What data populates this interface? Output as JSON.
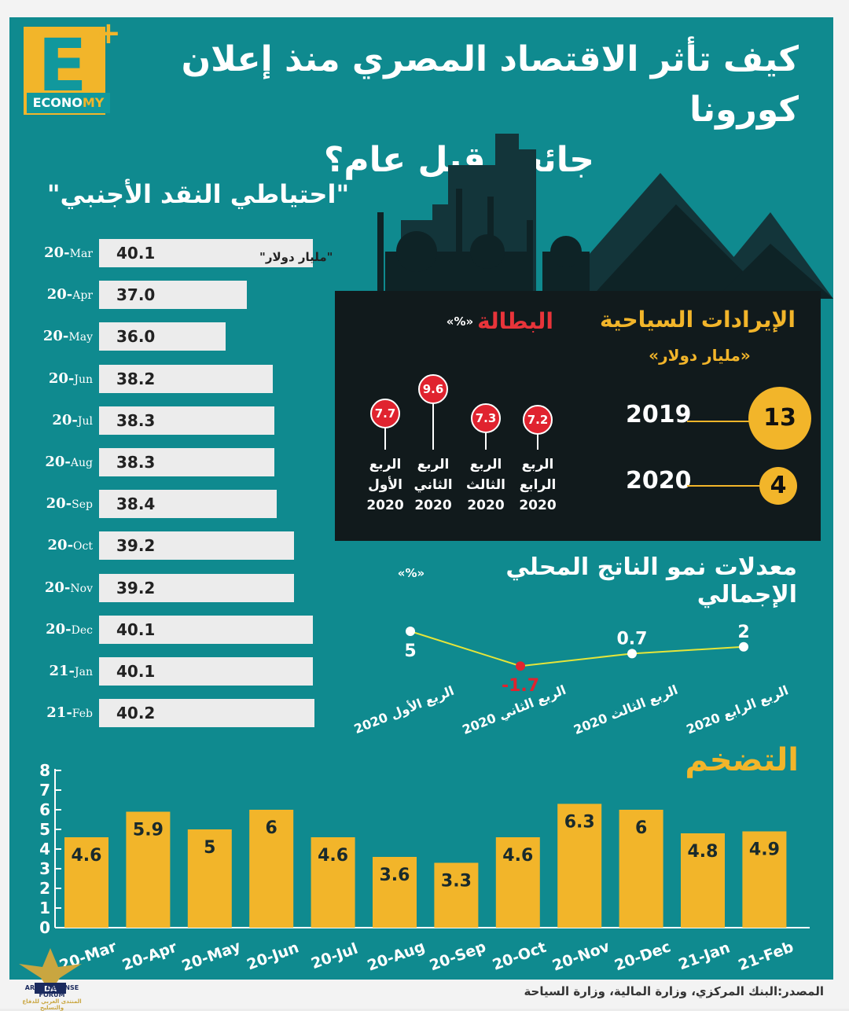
{
  "brand": {
    "letter": "E",
    "plus": "+",
    "word_prefix": "ECONO",
    "word_suffix": "MY"
  },
  "title_line1": "كيف تأثر الاقتصاد المصري منذ إعلان كورونا",
  "title_line2": "جائحة قبل عام؟",
  "source": "المصدر:البنك المركزي، وزارة المالية، وزارة السياحة",
  "watermark": {
    "name": "ARAB DEFENSE FORUM",
    "arabic": "المنتدى العربي للدفاع والتسليح",
    "mark": "DA"
  },
  "colors": {
    "background": "#0f8a8f",
    "accent": "#f2b52a",
    "unemployment": "#e0232f",
    "dark_panel": "#111a1c",
    "bar_light": "#ececec"
  },
  "reserves": {
    "title": "\"احتياطي النقد الأجنبي\"",
    "unit": "\"مليار دولار\"",
    "rows": [
      {
        "year": "20-",
        "month": "Mar",
        "value": "40.1"
      },
      {
        "year": "20-",
        "month": "Apr",
        "value": "37.0"
      },
      {
        "year": "20-",
        "month": "May",
        "value": "36.0"
      },
      {
        "year": "20-",
        "month": "Jun",
        "value": "38.2"
      },
      {
        "year": "20-",
        "month": "Jul",
        "value": "38.3"
      },
      {
        "year": "20-",
        "month": "Aug",
        "value": "38.3"
      },
      {
        "year": "20-",
        "month": "Sep",
        "value": "38.4"
      },
      {
        "year": "20-",
        "month": "Oct",
        "value": "39.2"
      },
      {
        "year": "20-",
        "month": "Nov",
        "value": "39.2"
      },
      {
        "year": "20-",
        "month": "Dec",
        "value": "40.1"
      },
      {
        "year": "21-",
        "month": "Jan",
        "value": "40.1"
      },
      {
        "year": "21-",
        "month": "Feb",
        "value": "40.2"
      }
    ]
  },
  "tourism": {
    "title": "الإيرادات السياحية",
    "unit": "«مليار دولار»",
    "items": [
      {
        "year": "2019",
        "value": "13"
      },
      {
        "year": "2020",
        "value": "4"
      }
    ]
  },
  "unemployment": {
    "title": "البطالة",
    "unit": "«%»",
    "items": [
      {
        "value": "7.7",
        "line1": "الربع",
        "line2": "الأول",
        "line3": "2020"
      },
      {
        "value": "9.6",
        "line1": "الربع",
        "line2": "الثاني",
        "line3": "2020"
      },
      {
        "value": "7.3",
        "line1": "الربع",
        "line2": "الثالث",
        "line3": "2020"
      },
      {
        "value": "7.2",
        "line1": "الربع",
        "line2": "الرابع",
        "line3": "2020"
      }
    ]
  },
  "gdp": {
    "title": "معدلات نمو الناتج المحلي الإجمالي",
    "unit": "«%»"
  },
  "inflation": {
    "title": "التضخم"
  },
  "chart_data": [
    {
      "type": "bar",
      "title": "\"احتياطي النقد الأجنبي\"",
      "ylabel": "\"مليار دولار\"",
      "categories": [
        "20-Mar",
        "20-Apr",
        "20-May",
        "20-Jun",
        "20-Jul",
        "20-Aug",
        "20-Sep",
        "20-Oct",
        "20-Nov",
        "20-Dec",
        "21-Jan",
        "21-Feb"
      ],
      "values": [
        40.1,
        37.0,
        36.0,
        38.2,
        38.3,
        38.3,
        38.4,
        39.2,
        39.2,
        40.1,
        40.1,
        40.2
      ]
    },
    {
      "type": "table",
      "title": "الإيرادات السياحية",
      "ylabel": "«مليار دولار»",
      "categories": [
        "2019",
        "2020"
      ],
      "values": [
        13,
        4
      ]
    },
    {
      "type": "scatter",
      "title": "البطالة",
      "ylabel": "«%»",
      "categories": [
        "الربع الأول 2020",
        "الربع الثاني 2020",
        "الربع الثالث 2020",
        "الربع الرابع 2020"
      ],
      "values": [
        7.7,
        9.6,
        7.3,
        7.2
      ]
    },
    {
      "type": "line",
      "title": "معدلات نمو الناتج المحلي الإجمالي",
      "ylabel": "«%»",
      "categories": [
        "الربع الأول 2020",
        "الربع الثاني 2020",
        "الربع الثالث 2020",
        "الربع الرابع 2020"
      ],
      "values": [
        5,
        -1.7,
        0.7,
        2
      ],
      "labels": [
        "5",
        "-1.7",
        "0.7",
        "2"
      ]
    },
    {
      "type": "bar",
      "title": "التضخم",
      "categories": [
        "20-Mar",
        "20-Apr",
        "20-May",
        "20-Jun",
        "20-Jul",
        "20-Aug",
        "20-Sep",
        "20-Oct",
        "20-Nov",
        "20-Dec",
        "21-Jan",
        "21-Feb"
      ],
      "values": [
        4.6,
        5.9,
        5,
        6,
        4.6,
        3.6,
        3.3,
        4.6,
        6.3,
        6,
        4.8,
        4.9
      ],
      "labels": [
        "4.6",
        "5.9",
        "5",
        "6",
        "4.6",
        "3.6",
        "3.3",
        "4.6",
        "6.3",
        "6",
        "4.8",
        "4.9"
      ],
      "yticks": [
        "0",
        "1",
        "2",
        "3",
        "4",
        "5",
        "6",
        "7",
        "8"
      ],
      "ylim": [
        0,
        8
      ]
    }
  ]
}
